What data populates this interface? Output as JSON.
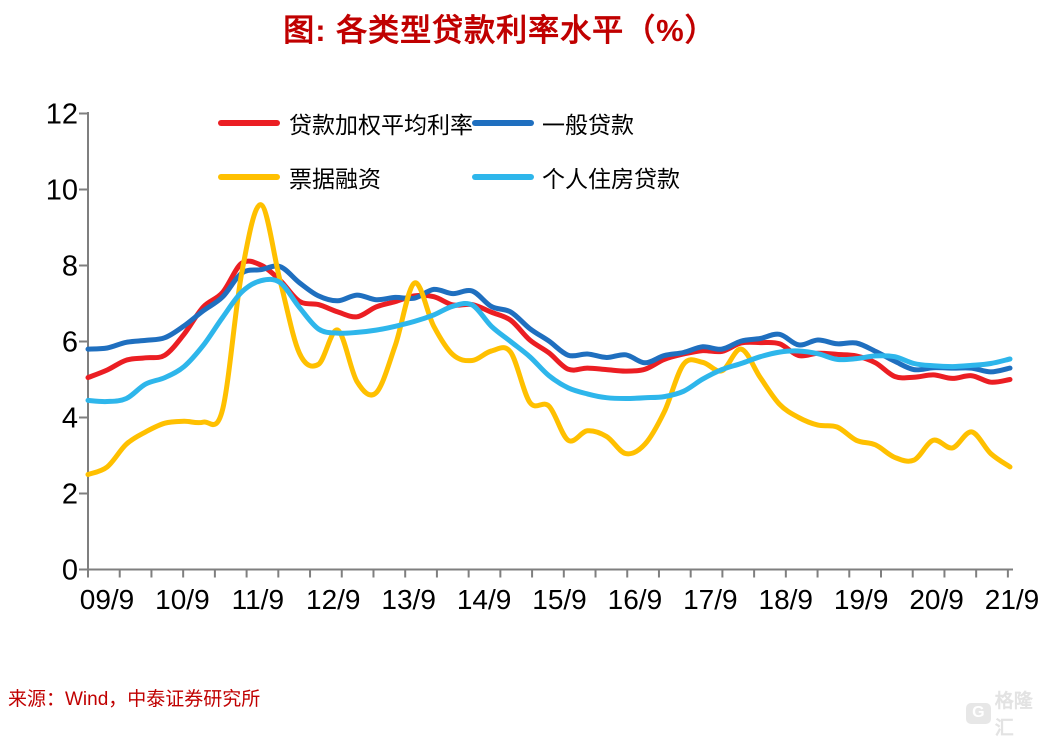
{
  "title": "图: 各类型贷款利率水平（%）",
  "source": "来源：Wind，中泰证券研究所",
  "watermark": {
    "icon": "G",
    "text": "格隆汇"
  },
  "colors": {
    "title": "#c00000",
    "source": "#c00000",
    "axis": "#7f7f7f",
    "tick_label": "#000000",
    "watermark": "#e3e3e3"
  },
  "legend": {
    "items": [
      {
        "label": "贷款加权平均利率",
        "color": "#eb1e23"
      },
      {
        "label": "一般贷款",
        "color": "#1f6fbf"
      },
      {
        "label": "票据融资",
        "color": "#ffc000"
      },
      {
        "label": "个人住房贷款",
        "color": "#2eb6eb"
      }
    ]
  },
  "chart_data": {
    "type": "line",
    "title": "图: 各类型贷款利率水平（%）",
    "x_labels": [
      "09/9",
      "10/9",
      "11/9",
      "12/9",
      "13/9",
      "14/9",
      "15/9",
      "16/9",
      "17/9",
      "18/9",
      "19/9",
      "20/9",
      "21/9"
    ],
    "points_per_label": 4,
    "x_range_note": "quarterly points from 2009Q3 to 2021Q3",
    "ylim": [
      0,
      12
    ],
    "y_ticks": [
      0,
      2,
      4,
      6,
      8,
      10,
      12
    ],
    "grid": false,
    "legend_position": "top-left, two rows",
    "series": [
      {
        "name": "贷款加权平均利率",
        "color": "#eb1e23",
        "values": [
          5.05,
          5.25,
          5.51,
          5.57,
          5.64,
          6.19,
          6.91,
          7.29,
          8.06,
          8.01,
          7.61,
          7.06,
          6.97,
          6.78,
          6.65,
          6.91,
          7.05,
          7.2,
          7.18,
          6.96,
          6.97,
          6.77,
          6.56,
          6.04,
          5.7,
          5.27,
          5.3,
          5.26,
          5.22,
          5.27,
          5.53,
          5.67,
          5.76,
          5.74,
          5.96,
          5.97,
          5.94,
          5.63,
          5.69,
          5.66,
          5.62,
          5.44,
          5.08,
          5.06,
          5.12,
          5.03,
          5.1,
          4.93,
          5.0
        ]
      },
      {
        "name": "一般贷款",
        "color": "#1f6fbf",
        "values": [
          5.8,
          5.83,
          5.98,
          6.03,
          6.1,
          6.41,
          6.81,
          7.17,
          7.8,
          7.89,
          7.97,
          7.55,
          7.2,
          7.07,
          7.22,
          7.1,
          7.16,
          7.14,
          7.37,
          7.26,
          7.33,
          6.92,
          6.78,
          6.34,
          6.01,
          5.64,
          5.67,
          5.58,
          5.65,
          5.44,
          5.63,
          5.71,
          5.86,
          5.8,
          6.01,
          6.08,
          6.19,
          5.91,
          6.04,
          5.94,
          5.96,
          5.74,
          5.48,
          5.26,
          5.31,
          5.3,
          5.3,
          5.2,
          5.3
        ]
      },
      {
        "name": "票据融资",
        "color": "#ffc000",
        "values": [
          2.5,
          2.7,
          3.3,
          3.62,
          3.85,
          3.9,
          3.88,
          4.2,
          7.8,
          9.6,
          7.6,
          5.7,
          5.4,
          6.3,
          4.95,
          4.65,
          5.9,
          7.54,
          6.4,
          5.65,
          5.5,
          5.75,
          5.72,
          4.4,
          4.3,
          3.4,
          3.65,
          3.5,
          3.05,
          3.3,
          4.15,
          5.4,
          5.45,
          5.23,
          5.8,
          5.05,
          4.35,
          4.0,
          3.8,
          3.75,
          3.4,
          3.28,
          2.95,
          2.88,
          3.4,
          3.2,
          3.62,
          3.05,
          2.7
        ]
      },
      {
        "name": "个人住房贷款",
        "color": "#2eb6eb",
        "values": [
          4.45,
          4.42,
          4.5,
          4.88,
          5.05,
          5.34,
          5.9,
          6.63,
          7.3,
          7.6,
          7.55,
          6.9,
          6.33,
          6.22,
          6.24,
          6.3,
          6.4,
          6.53,
          6.7,
          6.93,
          6.96,
          6.4,
          6.0,
          5.6,
          5.1,
          4.78,
          4.62,
          4.52,
          4.5,
          4.52,
          4.55,
          4.69,
          5.01,
          5.26,
          5.42,
          5.6,
          5.72,
          5.75,
          5.68,
          5.53,
          5.55,
          5.62,
          5.6,
          5.42,
          5.36,
          5.34,
          5.37,
          5.42,
          5.54
        ]
      }
    ]
  }
}
